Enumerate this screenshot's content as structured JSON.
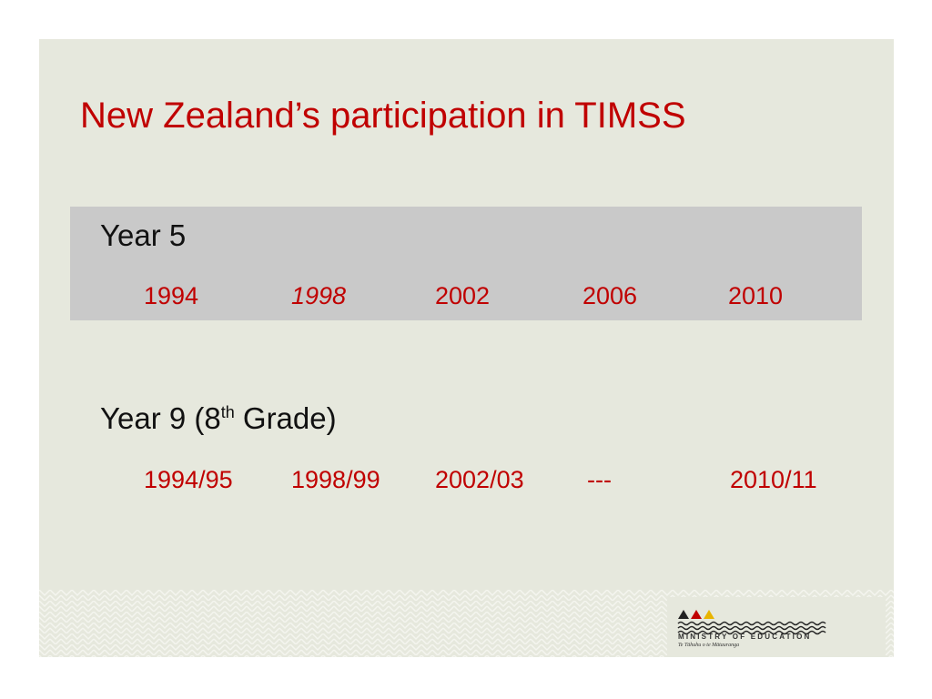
{
  "title": "New Zealand’s participation in TIMSS",
  "year5": {
    "label": "Year 5",
    "years": [
      "1994",
      "1998",
      "2002",
      "2006",
      "2010"
    ]
  },
  "year9": {
    "label": [
      "Year 9 (8",
      "th",
      " Grade)"
    ],
    "years": [
      "1994/95",
      "1998/99",
      "2002/03",
      "---",
      "2010/11"
    ]
  },
  "logo": {
    "name": "MINISTRY OF EDUCATION",
    "subtitle": "Te Tāhuhu o te Mātauranga"
  }
}
